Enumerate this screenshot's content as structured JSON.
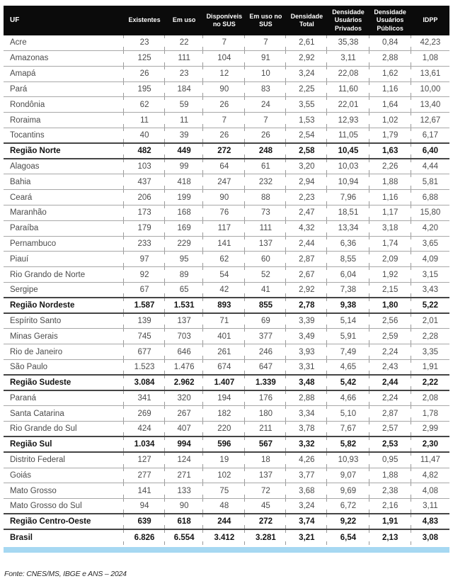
{
  "table": {
    "columns": [
      "UF",
      "Existentes",
      "Em uso",
      "Disponíveis no SUS",
      "Em uso no SUS",
      "Densidade Total",
      "Densidade Usuários Privados",
      "Densidade Usuários Públicos",
      "IDPP"
    ],
    "rows": [
      {
        "uf": "Acre",
        "bold": false,
        "values": [
          "23",
          "22",
          "7",
          "7",
          "2,61",
          "35,38",
          "0,84",
          "42,23"
        ]
      },
      {
        "uf": "Amazonas",
        "bold": false,
        "values": [
          "125",
          "111",
          "104",
          "91",
          "2,92",
          "3,11",
          "2,88",
          "1,08"
        ]
      },
      {
        "uf": "Amapá",
        "bold": false,
        "values": [
          "26",
          "23",
          "12",
          "10",
          "3,24",
          "22,08",
          "1,62",
          "13,61"
        ]
      },
      {
        "uf": "Pará",
        "bold": false,
        "values": [
          "195",
          "184",
          "90",
          "83",
          "2,25",
          "11,60",
          "1,16",
          "10,00"
        ]
      },
      {
        "uf": "Rondônia",
        "bold": false,
        "values": [
          "62",
          "59",
          "26",
          "24",
          "3,55",
          "22,01",
          "1,64",
          "13,40"
        ]
      },
      {
        "uf": "Roraima",
        "bold": false,
        "values": [
          "11",
          "11",
          "7",
          "7",
          "1,53",
          "12,93",
          "1,02",
          "12,67"
        ]
      },
      {
        "uf": "Tocantins",
        "bold": false,
        "values": [
          "40",
          "39",
          "26",
          "26",
          "2,54",
          "11,05",
          "1,79",
          "6,17"
        ]
      },
      {
        "uf": "Região Norte",
        "bold": true,
        "values": [
          "482",
          "449",
          "272",
          "248",
          "2,58",
          "10,45",
          "1,63",
          "6,40"
        ]
      },
      {
        "uf": "Alagoas",
        "bold": false,
        "values": [
          "103",
          "99",
          "64",
          "61",
          "3,20",
          "10,03",
          "2,26",
          "4,44"
        ]
      },
      {
        "uf": "Bahia",
        "bold": false,
        "values": [
          "437",
          "418",
          "247",
          "232",
          "2,94",
          "10,94",
          "1,88",
          "5,81"
        ]
      },
      {
        "uf": "Ceará",
        "bold": false,
        "values": [
          "206",
          "199",
          "90",
          "88",
          "2,23",
          "7,96",
          "1,16",
          "6,88"
        ]
      },
      {
        "uf": "Maranhão",
        "bold": false,
        "values": [
          "173",
          "168",
          "76",
          "73",
          "2,47",
          "18,51",
          "1,17",
          "15,80"
        ]
      },
      {
        "uf": "Paraíba",
        "bold": false,
        "values": [
          "179",
          "169",
          "117",
          "111",
          "4,32",
          "13,34",
          "3,18",
          "4,20"
        ]
      },
      {
        "uf": "Pernambuco",
        "bold": false,
        "values": [
          "233",
          "229",
          "141",
          "137",
          "2,44",
          "6,36",
          "1,74",
          "3,65"
        ]
      },
      {
        "uf": "Piauí",
        "bold": false,
        "values": [
          "97",
          "95",
          "62",
          "60",
          "2,87",
          "8,55",
          "2,09",
          "4,09"
        ]
      },
      {
        "uf": "Rio Grando de Norte",
        "bold": false,
        "values": [
          "92",
          "89",
          "54",
          "52",
          "2,67",
          "6,04",
          "1,92",
          "3,15"
        ]
      },
      {
        "uf": "Sergipe",
        "bold": false,
        "values": [
          "67",
          "65",
          "42",
          "41",
          "2,92",
          "7,38",
          "2,15",
          "3,43"
        ]
      },
      {
        "uf": "Região Nordeste",
        "bold": true,
        "values": [
          "1.587",
          "1.531",
          "893",
          "855",
          "2,78",
          "9,38",
          "1,80",
          "5,22"
        ]
      },
      {
        "uf": "Espírito Santo",
        "bold": false,
        "values": [
          "139",
          "137",
          "71",
          "69",
          "3,39",
          "5,14",
          "2,56",
          "2,01"
        ]
      },
      {
        "uf": "Minas Gerais",
        "bold": false,
        "values": [
          "745",
          "703",
          "401",
          "377",
          "3,49",
          "5,91",
          "2,59",
          "2,28"
        ]
      },
      {
        "uf": "Rio de Janeiro",
        "bold": false,
        "values": [
          "677",
          "646",
          "261",
          "246",
          "3,93",
          "7,49",
          "2,24",
          "3,35"
        ]
      },
      {
        "uf": "São Paulo",
        "bold": false,
        "values": [
          "1.523",
          "1.476",
          "674",
          "647",
          "3,31",
          "4,65",
          "2,43",
          "1,91"
        ]
      },
      {
        "uf": "Região Sudeste",
        "bold": true,
        "values": [
          "3.084",
          "2.962",
          "1.407",
          "1.339",
          "3,48",
          "5,42",
          "2,44",
          "2,22"
        ]
      },
      {
        "uf": "Paraná",
        "bold": false,
        "values": [
          "341",
          "320",
          "194",
          "176",
          "2,88",
          "4,66",
          "2,24",
          "2,08"
        ]
      },
      {
        "uf": "Santa Catarina",
        "bold": false,
        "values": [
          "269",
          "267",
          "182",
          "180",
          "3,34",
          "5,10",
          "2,87",
          "1,78"
        ]
      },
      {
        "uf": "Rio Grande do Sul",
        "bold": false,
        "values": [
          "424",
          "407",
          "220",
          "211",
          "3,78",
          "7,67",
          "2,57",
          "2,99"
        ]
      },
      {
        "uf": "Região Sul",
        "bold": true,
        "values": [
          "1.034",
          "994",
          "596",
          "567",
          "3,32",
          "5,82",
          "2,53",
          "2,30"
        ]
      },
      {
        "uf": "Distrito Federal",
        "bold": false,
        "values": [
          "127",
          "124",
          "19",
          "18",
          "4,26",
          "10,93",
          "0,95",
          "11,47"
        ]
      },
      {
        "uf": "Goiás",
        "bold": false,
        "values": [
          "277",
          "271",
          "102",
          "137",
          "3,77",
          "9,07",
          "1,88",
          "4,82"
        ]
      },
      {
        "uf": "Mato Grosso",
        "bold": false,
        "values": [
          "141",
          "133",
          "75",
          "72",
          "3,68",
          "9,69",
          "2,38",
          "4,08"
        ]
      },
      {
        "uf": "Mato Grosso do Sul",
        "bold": false,
        "values": [
          "94",
          "90",
          "48",
          "45",
          "3,24",
          "6,72",
          "2,16",
          "3,11"
        ]
      },
      {
        "uf": "Região Centro-Oeste",
        "bold": true,
        "values": [
          "639",
          "618",
          "244",
          "272",
          "3,74",
          "9,22",
          "1,91",
          "4,83"
        ]
      },
      {
        "uf": "Brasil",
        "bold": true,
        "values": [
          "6.826",
          "6.554",
          "3.412",
          "3.281",
          "3,21",
          "6,54",
          "2,13",
          "3,08"
        ]
      }
    ]
  },
  "footer": {
    "source": "Fonte: CNES/MS, IBGE e ANS – 2024"
  },
  "colors": {
    "header_bg": "#0b0b0b",
    "accent_bar": "#a6d8f2",
    "row_text": "#4b4b4b",
    "row_line": "#a8a8a8"
  }
}
